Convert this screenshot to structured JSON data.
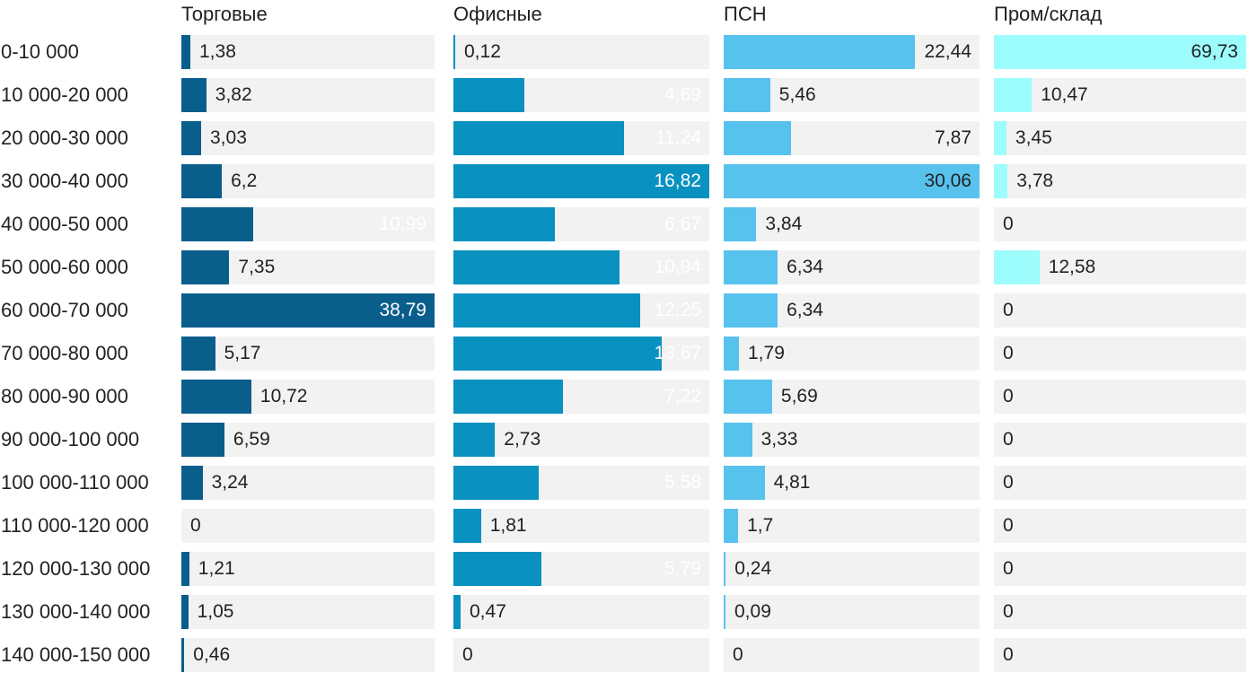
{
  "page": {
    "background_color": "#ffffff",
    "text_color": "#222222"
  },
  "chart_data": {
    "type": "bar",
    "orientation": "horizontal",
    "grid": false,
    "column_headers_position": "top",
    "track_color": "#f2f2f2",
    "outside_label_color": "#222222",
    "decimal_separator": ",",
    "categories": [
      "0-10 000",
      "10 000-20 000",
      "20 000-30 000",
      "30 000-40 000",
      "40 000-50 000",
      "50 000-60 000",
      "60 000-70 000",
      "70 000-80 000",
      "80 000-90 000",
      "90 000-100 000",
      "100 000-110 000",
      "110 000-120 000",
      "120 000-130 000",
      "130 000-140 000",
      "140 000-150 000"
    ],
    "series": [
      {
        "name": "Торговые",
        "color": "#0a5e8c",
        "inside_label_color": "#ffffff",
        "axis_max": 38.79,
        "values": [
          1.38,
          3.82,
          3.03,
          6.2,
          10.99,
          7.35,
          38.79,
          5.17,
          10.72,
          6.59,
          3.24,
          0,
          1.21,
          1.05,
          0.46
        ],
        "labels": [
          "1,38",
          "3,82",
          "3,03",
          "6,2",
          "10,99",
          "7,35",
          "38,79",
          "5,17",
          "10,72",
          "6,59",
          "3,24",
          "0",
          "1,21",
          "1,05",
          "0,46"
        ]
      },
      {
        "name": "Офисные",
        "color": "#0991bf",
        "inside_label_color": "#ffffff",
        "axis_max": 16.82,
        "values": [
          0.12,
          4.69,
          11.24,
          16.82,
          6.67,
          10.94,
          12.25,
          13.67,
          7.22,
          2.73,
          5.58,
          1.81,
          5.79,
          0.47,
          0
        ],
        "labels": [
          "0,12",
          "4,69",
          "11,24",
          "16,82",
          "6,67",
          "10,94",
          "12,25",
          "13,67",
          "7,22",
          "2,73",
          "5,58",
          "1,81",
          "5,79",
          "0,47",
          "0"
        ]
      },
      {
        "name": "ПСН",
        "color": "#58c2ee",
        "inside_label_color": "#222222",
        "axis_max": 30.06,
        "values": [
          22.44,
          5.46,
          7.87,
          30.06,
          3.84,
          6.34,
          6.34,
          1.79,
          5.69,
          3.33,
          4.81,
          1.7,
          0.24,
          0.09,
          0
        ],
        "labels": [
          "22,44",
          "5,46",
          "7,87",
          "30,06",
          "3,84",
          "6,34",
          "6,34",
          "1,79",
          "5,69",
          "3,33",
          "4,81",
          "1,7",
          "0,24",
          "0,09",
          "0"
        ]
      },
      {
        "name": "Пром/склад",
        "color": "#9dfcfc",
        "inside_label_color": "#222222",
        "axis_max": 69.73,
        "values": [
          69.73,
          10.47,
          3.45,
          3.78,
          0,
          12.58,
          0,
          0,
          0,
          0,
          0,
          0,
          0,
          0,
          0
        ],
        "labels": [
          "69,73",
          "10,47",
          "3,45",
          "3,78",
          "0",
          "12,58",
          "0",
          "0",
          "0",
          "0",
          "0",
          "0",
          "0",
          "0",
          "0"
        ]
      }
    ]
  }
}
